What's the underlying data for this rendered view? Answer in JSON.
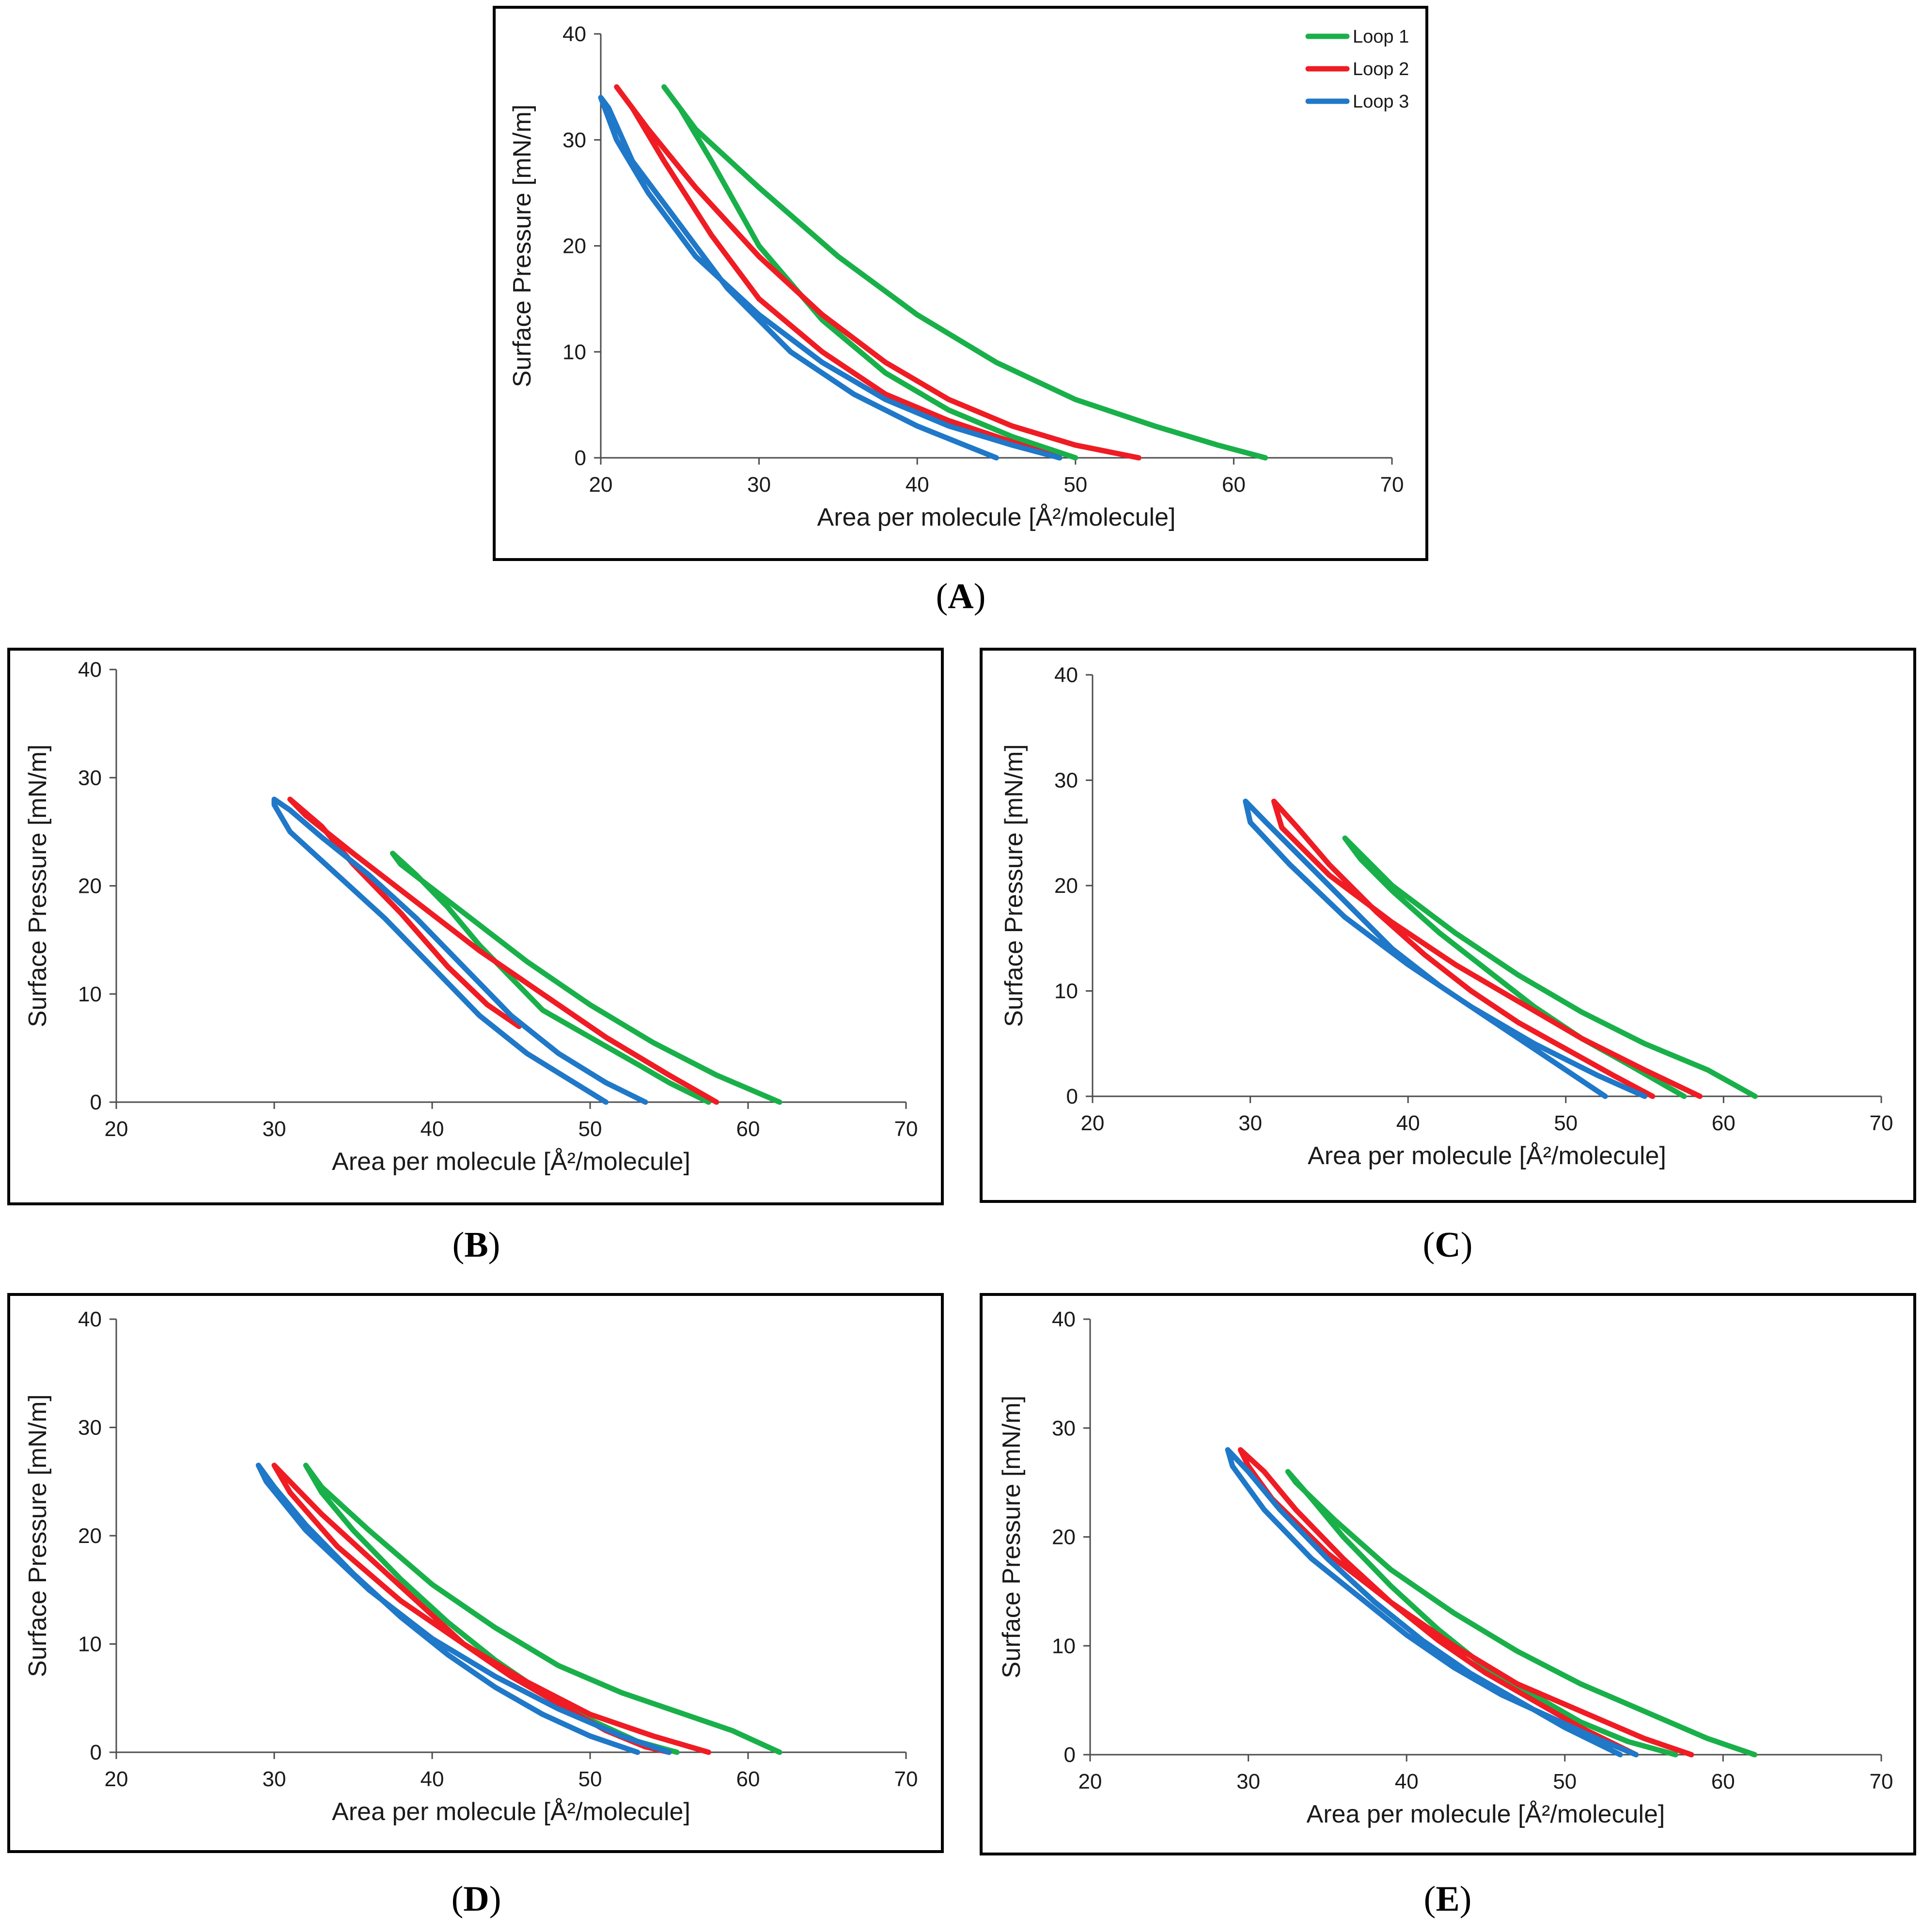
{
  "colors": {
    "Loop 1": "#19b04a",
    "Loop 2": "#ef1c24",
    "Loop 3": "#1f78c8"
  },
  "chart_data": [
    {
      "type": "line",
      "caption": "A",
      "xlabel": "Area per molecule",
      "xlabel_unit": "[Å²/molecule]",
      "ylabel": "Surface Pressure [mN/m]",
      "xlim": [
        20,
        70
      ],
      "ylim": [
        0,
        40
      ],
      "xticks": [
        "20",
        "30",
        "40",
        "50",
        "60",
        "70"
      ],
      "yticks": [
        "0",
        "10",
        "20",
        "30",
        "40"
      ],
      "legend": {
        "position": "top-right",
        "entries": [
          "Loop 1",
          "Loop 2",
          "Loop 3"
        ]
      },
      "series": [
        {
          "name": "Loop 1",
          "x": [
            62,
            59,
            55,
            50,
            45,
            40,
            35,
            30,
            26,
            24,
            25,
            27,
            30,
            34,
            38,
            42,
            46,
            50
          ],
          "y": [
            0,
            1.2,
            3,
            5.5,
            9,
            13.5,
            19,
            25.5,
            31,
            35,
            33,
            28,
            20,
            13,
            8,
            4.5,
            2,
            0
          ]
        },
        {
          "name": "Loop 2",
          "x": [
            54,
            50,
            46,
            42,
            38,
            34,
            30,
            26,
            23,
            21,
            22,
            24,
            27,
            30,
            34,
            38,
            42,
            46,
            49
          ],
          "y": [
            0,
            1.2,
            3,
            5.5,
            9,
            13.5,
            19,
            25.5,
            31,
            35,
            33,
            28,
            21,
            15,
            10,
            6,
            3.5,
            1.5,
            0
          ]
        },
        {
          "name": "Loop 3",
          "x": [
            49,
            46,
            42,
            38,
            34,
            30,
            26,
            23,
            21,
            20,
            20.5,
            22,
            25,
            28,
            32,
            36,
            40,
            43,
            45
          ],
          "y": [
            0,
            1.2,
            3,
            5.5,
            9,
            13.5,
            19,
            25,
            30,
            34,
            33,
            28,
            22,
            16,
            10,
            6,
            3,
            1.2,
            0
          ]
        }
      ]
    },
    {
      "type": "line",
      "caption": "B",
      "xlabel": "Area per molecule",
      "xlabel_unit": "[Å²/molecule]",
      "ylabel": "Surface Pressure [mN/m]",
      "xlim": [
        20,
        70
      ],
      "ylim": [
        0,
        40
      ],
      "xticks": [
        "20",
        "30",
        "40",
        "50",
        "60",
        "70"
      ],
      "yticks": [
        "0",
        "10",
        "20",
        "30",
        "40"
      ],
      "series": [
        {
          "name": "Loop 1",
          "x": [
            62,
            58,
            54,
            50,
            46,
            42,
            38,
            37.5,
            39,
            41,
            43,
            45,
            47,
            50,
            53,
            55,
            57.5
          ],
          "y": [
            0,
            2.5,
            5.5,
            9,
            13,
            17.5,
            22,
            23,
            21,
            18,
            14.5,
            11.5,
            8.5,
            6,
            3.5,
            1.8,
            0
          ]
        },
        {
          "name": "Loop 2",
          "x": [
            58,
            55,
            51,
            47,
            43,
            39,
            35,
            32,
            31,
            33,
            35,
            38,
            41,
            43.5,
            45.5
          ],
          "y": [
            0,
            2.5,
            6,
            10,
            14,
            18.5,
            23,
            26.5,
            28,
            25.5,
            22,
            17.5,
            12.5,
            9,
            7
          ]
        },
        {
          "name": "Loop 3",
          "x": [
            53.5,
            51,
            48,
            45,
            42,
            39,
            36,
            33,
            31,
            30,
            30,
            31,
            34,
            37,
            40,
            43,
            46,
            49,
            51
          ],
          "y": [
            0,
            1.8,
            4.5,
            8,
            12.5,
            17,
            21,
            24.5,
            27,
            28,
            27.5,
            25,
            21,
            17,
            12.5,
            8,
            4.5,
            1.8,
            0
          ]
        }
      ]
    },
    {
      "type": "line",
      "caption": "C",
      "xlabel": "Area per molecule",
      "xlabel_unit": "[Å²/molecule]",
      "ylabel": "Surface Pressure [mN/m]",
      "xlim": [
        20,
        70
      ],
      "ylim": [
        0,
        40
      ],
      "xticks": [
        "20",
        "30",
        "40",
        "50",
        "60",
        "70"
      ],
      "yticks": [
        "0",
        "10",
        "20",
        "30",
        "40"
      ],
      "series": [
        {
          "name": "Loop 1",
          "x": [
            62,
            59,
            55,
            51,
            47,
            43,
            39,
            36,
            37,
            39,
            42,
            45,
            48,
            51,
            54,
            57.5
          ],
          "y": [
            0,
            2.5,
            5,
            8,
            11.5,
            15.5,
            20,
            24.5,
            22.5,
            19.5,
            15.5,
            12,
            8.5,
            5.5,
            3,
            0
          ]
        },
        {
          "name": "Loop 2",
          "x": [
            58.5,
            55,
            51,
            47,
            43,
            39,
            35,
            32,
            31.5,
            33,
            35,
            38,
            41,
            44,
            47,
            50,
            53,
            55.5
          ],
          "y": [
            0,
            2.5,
            5.5,
            9,
            12.5,
            16.5,
            21,
            25.5,
            28,
            25.5,
            22,
            17.5,
            13.5,
            10,
            7,
            4.5,
            2,
            0
          ]
        },
        {
          "name": "Loop 3",
          "x": [
            55,
            52,
            48,
            44,
            40,
            36,
            32.5,
            30,
            29.7,
            31,
            33,
            36,
            39,
            42,
            45,
            48,
            50.5,
            52.5
          ],
          "y": [
            0,
            2,
            5,
            8.5,
            12.5,
            17,
            22,
            26,
            28,
            26,
            23,
            18.5,
            14,
            10.5,
            7.5,
            4.5,
            2,
            0
          ]
        }
      ]
    },
    {
      "type": "line",
      "caption": "D",
      "xlabel": "Area per molecule",
      "xlabel_unit": "[Å²/molecule]",
      "ylabel": "Surface Pressure [mN/m]",
      "xlim": [
        20,
        70
      ],
      "ylim": [
        0,
        40
      ],
      "xticks": [
        "20",
        "30",
        "40",
        "50",
        "60",
        "70"
      ],
      "yticks": [
        "0",
        "10",
        "20",
        "30",
        "40"
      ],
      "series": [
        {
          "name": "Loop 1",
          "x": [
            62,
            59,
            56,
            52,
            48,
            44,
            40,
            36,
            33,
            32,
            33,
            35,
            38,
            41,
            44,
            47,
            50,
            53,
            55.5
          ],
          "y": [
            0,
            2,
            3.5,
            5.5,
            8,
            11.5,
            15.5,
            20.5,
            24.5,
            26.5,
            24,
            20.5,
            16,
            12,
            8.5,
            5.5,
            3,
            1,
            0
          ]
        },
        {
          "name": "Loop 2",
          "x": [
            57.5,
            54,
            50,
            46,
            42,
            38,
            34,
            31,
            30,
            31,
            33,
            36,
            39,
            42,
            45,
            48,
            51,
            53.5,
            55
          ],
          "y": [
            0,
            1.5,
            3.5,
            6.5,
            10,
            14,
            19,
            24,
            26.5,
            25,
            22,
            18,
            14,
            10,
            7,
            4.5,
            2,
            0.5,
            0
          ]
        },
        {
          "name": "Loop 3",
          "x": [
            55,
            52,
            48,
            44,
            40,
            36,
            32,
            29.5,
            29,
            30,
            32,
            35,
            38,
            41,
            44,
            47,
            50,
            52,
            53
          ],
          "y": [
            0,
            1.5,
            4,
            7,
            10.5,
            15,
            20.5,
            25,
            26.5,
            24.5,
            21,
            16.5,
            12.5,
            9,
            6,
            3.5,
            1.5,
            0.5,
            0
          ]
        }
      ]
    },
    {
      "type": "line",
      "caption": "E",
      "xlabel": "Area per molecule",
      "xlabel_unit": "[Å²/molecule]",
      "ylabel": "Surface Pressure [mN/m]",
      "xlim": [
        20,
        70
      ],
      "ylim": [
        0,
        40
      ],
      "xticks": [
        "20",
        "30",
        "40",
        "50",
        "60",
        "70"
      ],
      "yticks": [
        "0",
        "10",
        "20",
        "30",
        "40"
      ],
      "series": [
        {
          "name": "Loop 1",
          "x": [
            62,
            59,
            55,
            51,
            47,
            43,
            39,
            35.5,
            33,
            32.5,
            34,
            36,
            39,
            42,
            45,
            48,
            51,
            54,
            57
          ],
          "y": [
            0,
            1.5,
            4,
            6.5,
            9.5,
            13,
            17,
            21.5,
            25,
            26,
            23.5,
            20,
            15.5,
            11.5,
            8,
            5.5,
            3,
            1.2,
            0
          ]
        },
        {
          "name": "Loop 2",
          "x": [
            58,
            55,
            51,
            47,
            43,
            39,
            35,
            31.5,
            30,
            29.5,
            31,
            33,
            36,
            39,
            42,
            45,
            48,
            51,
            54.5
          ],
          "y": [
            0,
            1.5,
            4,
            6.5,
            10,
            14,
            18.5,
            23.5,
            26.5,
            28,
            26,
            22.5,
            18,
            14,
            10.5,
            7.5,
            5,
            2.5,
            0
          ]
        },
        {
          "name": "Loop 3",
          "x": [
            54.5,
            52,
            49,
            46,
            43,
            40,
            37,
            34,
            31,
            29,
            28.7,
            30,
            32,
            35,
            38,
            41,
            44,
            47,
            50,
            53.5
          ],
          "y": [
            0,
            1.5,
            3.5,
            5.5,
            8,
            11,
            14.5,
            18,
            22.5,
            26.5,
            28,
            26,
            22.5,
            18,
            14,
            10.5,
            7.5,
            5,
            2.5,
            0
          ]
        }
      ]
    }
  ]
}
